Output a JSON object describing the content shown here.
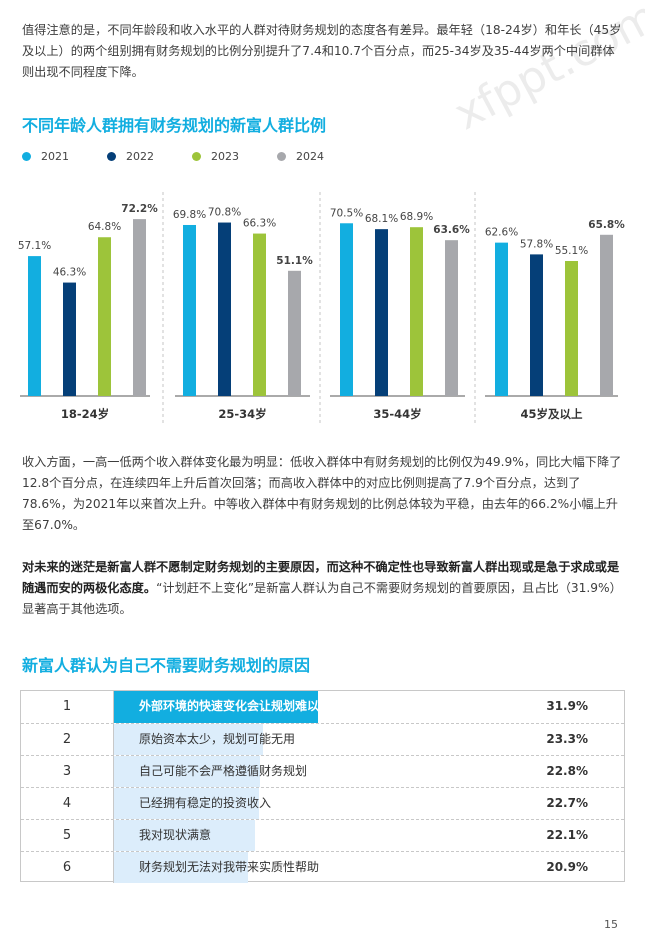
{
  "paragraphs": {
    "p1": "值得注意的是，不同年龄段和收入水平的人群对待财务规划的态度各有差异。最年轻（18-24岁）和年长（45岁及以上）的两个组别拥有财务规划的比例分别提升了7.4和10.7个百分点，而25-34岁及35-44岁两个中间群体则出现不同程度下降。",
    "p2": "收入方面，一高一低两个收入群体变化最为明显：低收入群体中有财务规划的比例仅为49.9%，同比大幅下降了12.8个百分点，在连续四年上升后首次回落；而高收入群体中的对应比例则提高了7.9个百分点，达到了78.6%，为2021年以来首次上升。中等收入群体中有财务规划的比例总体较为平稳，由去年的66.2%小幅上升至67.0%。",
    "p3_bold": "对未来的迷茫是新富人群不愿制定财务规划的主要原因，而这种不确定性也导致新富人群出现或是急于求成或是随遇而安的两极化态度。",
    "p3_rest": "“计划赶不上变化”是新富人群认为自己不需要财务规划的首要原因，且占比（31.9%）显著高于其他选项。"
  },
  "chart_data": {
    "type": "bar",
    "title": "不同年龄人群拥有财务规划的新富人群比例",
    "categories": [
      "18-24岁",
      "25-34岁",
      "35-44岁",
      "45岁及以上"
    ],
    "series": [
      {
        "name": "2021",
        "color": "#12aee0",
        "values": [
          57.1,
          69.8,
          70.5,
          62.6
        ],
        "labels": [
          "57.1%",
          "69.8%",
          "70.5%",
          "62.6%"
        ]
      },
      {
        "name": "2022",
        "color": "#053f78",
        "values": [
          46.3,
          70.8,
          68.1,
          57.8
        ],
        "labels": [
          "46.3%",
          "70.8%",
          "68.1%",
          "57.8%"
        ]
      },
      {
        "name": "2023",
        "color": "#9dc43a",
        "values": [
          64.8,
          66.3,
          68.9,
          55.1
        ],
        "labels": [
          "64.8%",
          "66.3%",
          "68.9%",
          "55.1%"
        ]
      },
      {
        "name": "2024",
        "color": "#a7a8ac",
        "values": [
          72.2,
          51.1,
          63.6,
          65.8
        ],
        "labels": [
          "72.2%",
          "51.1%",
          "63.6%",
          "65.8%"
        ]
      }
    ],
    "ylim": [
      0,
      80
    ],
    "legend": "top-left",
    "grid": false
  },
  "table": {
    "title": "新富人群认为自己不需要财务规划的原因",
    "rows": [
      {
        "rank": "1",
        "reason": "外部环境的快速变化会让规划难以落实",
        "value": 31.9,
        "pct": "31.9%"
      },
      {
        "rank": "2",
        "reason": "原始资本太少，规划可能无用",
        "value": 23.3,
        "pct": "23.3%"
      },
      {
        "rank": "3",
        "reason": "自己可能不会严格遵循财务规划",
        "value": 22.8,
        "pct": "22.8%"
      },
      {
        "rank": "4",
        "reason": "已经拥有稳定的投资收入",
        "value": 22.7,
        "pct": "22.7%"
      },
      {
        "rank": "5",
        "reason": "我对现状满意",
        "value": 22.1,
        "pct": "22.1%"
      },
      {
        "rank": "6",
        "reason": "财务规划无法对我带来实质性帮助",
        "value": 20.9,
        "pct": "20.9%"
      }
    ]
  },
  "page_number": "15",
  "watermark": "xfppt.com"
}
